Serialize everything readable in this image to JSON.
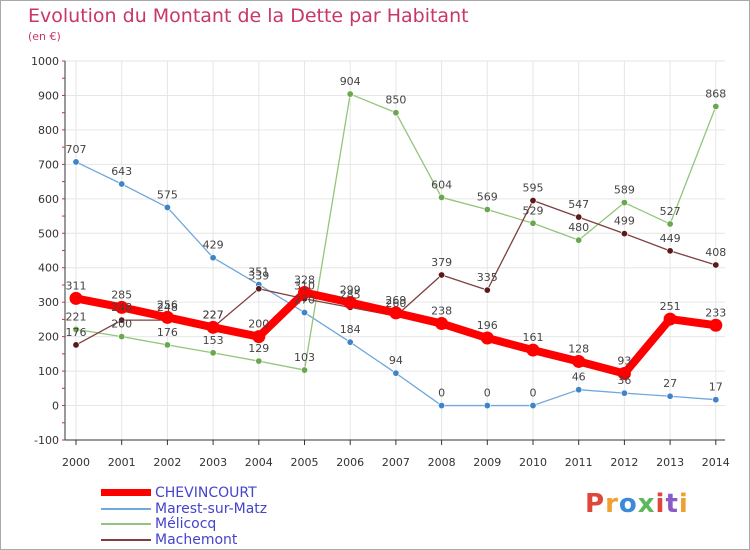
{
  "title": "Evolution du Montant de la Dette par Habitant",
  "unit": "(en €)",
  "logo": {
    "text": "Proxiti",
    "colors": [
      "#e0463a",
      "#f0a030",
      "#3c8ad8",
      "#5bb85c",
      "#e0463a",
      "#8a5bc6",
      "#f0a030"
    ]
  },
  "chart_data": {
    "type": "line",
    "x": [
      "2000",
      "2001",
      "2002",
      "2003",
      "2004",
      "2005",
      "2006",
      "2007",
      "2008",
      "2009",
      "2010",
      "2011",
      "2012",
      "2013",
      "2014"
    ],
    "ylim": [
      -100,
      1000
    ],
    "yticks": [
      -100,
      0,
      100,
      200,
      300,
      400,
      500,
      600,
      700,
      800,
      900,
      1000
    ],
    "ytick_labels": [
      "-100",
      "0",
      "100",
      "200",
      "300",
      "400",
      "500",
      "600",
      "700",
      "800",
      "900",
      "1000"
    ],
    "grid": true,
    "legend_position": "bottom-left",
    "series": [
      {
        "name": "CHEVINCOURT",
        "color": "#ff0000",
        "marker": "#ff0000",
        "width": 8,
        "values": [
          311,
          285,
          256,
          227,
          200,
          328,
          299,
          269,
          238,
          196,
          161,
          128,
          93,
          251,
          233
        ]
      },
      {
        "name": "Marest-sur-Matz",
        "color": "#6fa8dc",
        "marker": "#3d85c6",
        "width": 1.3,
        "values": [
          707,
          643,
          575,
          429,
          351,
          270,
          184,
          94,
          0,
          0,
          0,
          46,
          36,
          27,
          17
        ]
      },
      {
        "name": "Mélicocq",
        "color": "#93c47d",
        "marker": "#6aa84f",
        "width": 1.3,
        "values": [
          221,
          200,
          176,
          153,
          129,
          103,
          904,
          850,
          604,
          569,
          529,
          480,
          589,
          527,
          868
        ]
      },
      {
        "name": "Machemont",
        "color": "#7f3f3f",
        "marker": "#5b1a1a",
        "width": 1.3,
        "values": [
          176,
          248,
          248,
          227,
          339,
          310,
          285,
          260,
          379,
          335,
          595,
          547,
          499,
          449,
          408
        ]
      }
    ]
  }
}
